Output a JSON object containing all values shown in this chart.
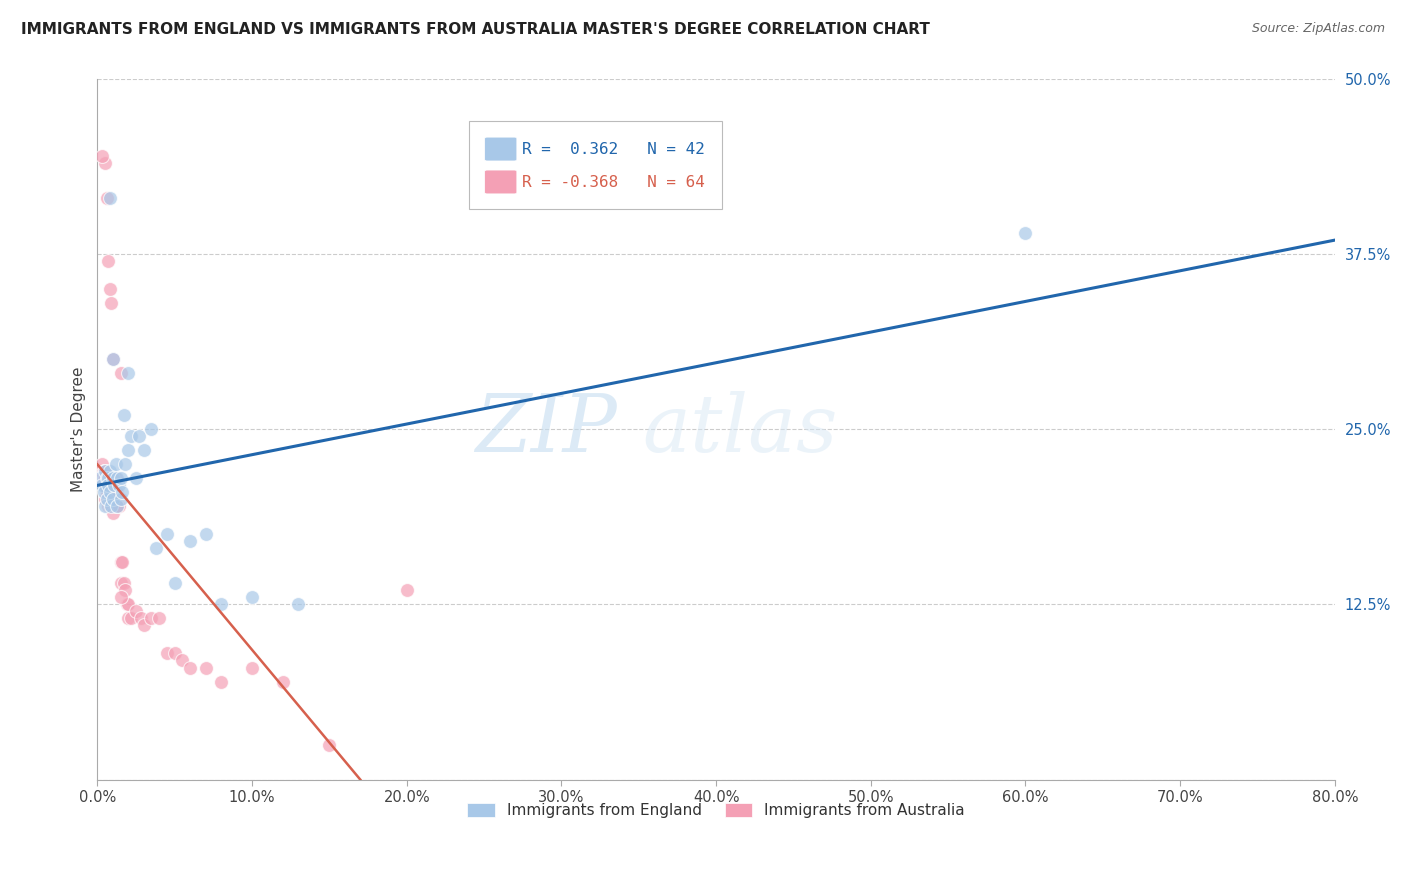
{
  "title": "IMMIGRANTS FROM ENGLAND VS IMMIGRANTS FROM AUSTRALIA MASTER'S DEGREE CORRELATION CHART",
  "source": "Source: ZipAtlas.com",
  "ylabel": "Master's Degree",
  "watermark_zip": "ZIP",
  "watermark_atlas": "atlas",
  "legend_blue_r_val": "0.362",
  "legend_blue_n_val": "42",
  "legend_pink_r_val": "-0.368",
  "legend_pink_n_val": "64",
  "blue_color": "#a8c8e8",
  "pink_color": "#f4a0b5",
  "blue_line_color": "#2166ac",
  "pink_line_color": "#d6604d",
  "xlim": [
    0.0,
    0.8
  ],
  "ylim": [
    0.0,
    0.5
  ],
  "xticks": [
    0.0,
    0.1,
    0.2,
    0.3,
    0.4,
    0.5,
    0.6,
    0.7,
    0.8
  ],
  "yticks": [
    0.0,
    0.125,
    0.25,
    0.375,
    0.5
  ],
  "ytick_labels": [
    "",
    "12.5%",
    "25.0%",
    "37.5%",
    "50.0%"
  ],
  "xtick_labels": [
    "0.0%",
    "10.0%",
    "20.0%",
    "30.0%",
    "40.0%",
    "50.0%",
    "60.0%",
    "70.0%",
    "80.0%"
  ],
  "blue_scatter_x": [
    0.002,
    0.003,
    0.004,
    0.005,
    0.005,
    0.006,
    0.006,
    0.007,
    0.007,
    0.008,
    0.008,
    0.009,
    0.01,
    0.01,
    0.011,
    0.012,
    0.013,
    0.013,
    0.014,
    0.015,
    0.015,
    0.016,
    0.017,
    0.018,
    0.02,
    0.022,
    0.025,
    0.027,
    0.03,
    0.035,
    0.038,
    0.045,
    0.05,
    0.06,
    0.07,
    0.08,
    0.1,
    0.13,
    0.6,
    0.02,
    0.01,
    0.008
  ],
  "blue_scatter_y": [
    0.215,
    0.21,
    0.205,
    0.22,
    0.195,
    0.215,
    0.2,
    0.215,
    0.21,
    0.22,
    0.205,
    0.195,
    0.215,
    0.2,
    0.21,
    0.225,
    0.215,
    0.195,
    0.21,
    0.2,
    0.215,
    0.205,
    0.26,
    0.225,
    0.235,
    0.245,
    0.215,
    0.245,
    0.235,
    0.25,
    0.165,
    0.175,
    0.14,
    0.17,
    0.175,
    0.125,
    0.13,
    0.125,
    0.39,
    0.29,
    0.3,
    0.415
  ],
  "pink_scatter_x": [
    0.001,
    0.002,
    0.002,
    0.003,
    0.003,
    0.004,
    0.004,
    0.005,
    0.005,
    0.005,
    0.005,
    0.006,
    0.006,
    0.007,
    0.007,
    0.007,
    0.008,
    0.008,
    0.008,
    0.009,
    0.009,
    0.01,
    0.01,
    0.01,
    0.011,
    0.011,
    0.012,
    0.012,
    0.013,
    0.013,
    0.014,
    0.015,
    0.015,
    0.016,
    0.017,
    0.018,
    0.019,
    0.02,
    0.02,
    0.022,
    0.025,
    0.028,
    0.03,
    0.035,
    0.04,
    0.045,
    0.05,
    0.055,
    0.06,
    0.07,
    0.08,
    0.1,
    0.12,
    0.15,
    0.005,
    0.006,
    0.007,
    0.008,
    0.009,
    0.01,
    0.015,
    0.2,
    0.015,
    0.003
  ],
  "pink_scatter_y": [
    0.215,
    0.215,
    0.22,
    0.215,
    0.225,
    0.215,
    0.22,
    0.215,
    0.21,
    0.22,
    0.2,
    0.215,
    0.205,
    0.215,
    0.195,
    0.21,
    0.215,
    0.205,
    0.195,
    0.21,
    0.2,
    0.215,
    0.2,
    0.19,
    0.21,
    0.2,
    0.195,
    0.215,
    0.205,
    0.195,
    0.195,
    0.155,
    0.14,
    0.155,
    0.14,
    0.135,
    0.125,
    0.115,
    0.125,
    0.115,
    0.12,
    0.115,
    0.11,
    0.115,
    0.115,
    0.09,
    0.09,
    0.085,
    0.08,
    0.08,
    0.07,
    0.08,
    0.07,
    0.025,
    0.44,
    0.415,
    0.37,
    0.35,
    0.34,
    0.3,
    0.29,
    0.135,
    0.13,
    0.445
  ],
  "blue_line_x": [
    0.0,
    0.8
  ],
  "blue_line_y": [
    0.21,
    0.385
  ],
  "pink_line_x": [
    0.0,
    0.17
  ],
  "pink_line_y": [
    0.225,
    0.0
  ],
  "marker_size": 100,
  "title_fontsize": 11,
  "axis_label_fontsize": 11,
  "tick_fontsize": 10.5
}
